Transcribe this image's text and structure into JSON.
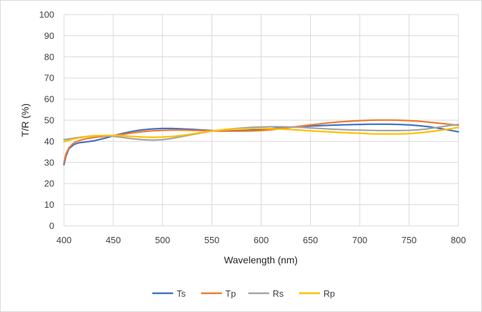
{
  "chart_data": {
    "type": "line",
    "title": "",
    "xlabel": "Wavelength (nm)",
    "ylabel": "T/R (%)",
    "xlim": [
      400,
      800
    ],
    "ylim": [
      0,
      100
    ],
    "xticks": [
      400,
      450,
      500,
      550,
      600,
      650,
      700,
      750,
      800
    ],
    "yticks": [
      0,
      10,
      20,
      30,
      40,
      50,
      60,
      70,
      80,
      90,
      100
    ],
    "grid": true,
    "legend_position": "bottom",
    "series": [
      {
        "name": "Ts",
        "color": "#4472C4",
        "x": [
          400,
          402,
          405,
          410,
          415,
          420,
          430,
          440,
          450,
          460,
          470,
          480,
          490,
          500,
          510,
          520,
          530,
          540,
          550,
          560,
          570,
          580,
          590,
          600,
          610,
          620,
          630,
          640,
          650,
          660,
          670,
          680,
          690,
          700,
          710,
          720,
          730,
          740,
          750,
          760,
          770,
          780,
          790,
          800
        ],
        "y": [
          29,
          33,
          36.5,
          38.5,
          39.3,
          39.6,
          40.2,
          41.3,
          42.6,
          43.8,
          44.8,
          45.5,
          45.9,
          46.1,
          46.1,
          45.9,
          45.7,
          45.4,
          45.1,
          45.0,
          45.0,
          45.1,
          45.3,
          45.6,
          46.0,
          46.4,
          46.7,
          47.0,
          47.2,
          47.4,
          47.6,
          47.8,
          47.9,
          48.0,
          48.1,
          48.1,
          48.1,
          48.0,
          47.8,
          47.4,
          46.9,
          46.2,
          45.4,
          44.5
        ]
      },
      {
        "name": "Tp",
        "color": "#ED7D31",
        "x": [
          400,
          402,
          405,
          410,
          415,
          420,
          430,
          440,
          450,
          460,
          470,
          480,
          490,
          500,
          510,
          520,
          530,
          540,
          550,
          560,
          570,
          580,
          590,
          600,
          610,
          620,
          630,
          640,
          650,
          660,
          670,
          680,
          690,
          700,
          710,
          720,
          730,
          740,
          750,
          760,
          770,
          780,
          790,
          800
        ],
        "y": [
          30,
          34,
          37,
          39.3,
          40.3,
          41.0,
          41.8,
          42.3,
          42.7,
          43.3,
          44.0,
          44.6,
          45.0,
          45.2,
          45.3,
          45.3,
          45.2,
          45.1,
          44.9,
          44.8,
          44.8,
          44.8,
          44.9,
          45.1,
          45.5,
          46.0,
          46.6,
          47.2,
          47.8,
          48.3,
          48.8,
          49.2,
          49.5,
          49.8,
          50.0,
          50.1,
          50.1,
          50.0,
          49.8,
          49.5,
          49.1,
          48.6,
          48.1,
          47.6
        ]
      },
      {
        "name": "Rs",
        "color": "#A5A5A5",
        "x": [
          400,
          410,
          420,
          430,
          440,
          450,
          460,
          470,
          480,
          490,
          500,
          510,
          520,
          530,
          540,
          550,
          560,
          570,
          580,
          590,
          600,
          610,
          620,
          630,
          640,
          650,
          660,
          670,
          680,
          690,
          700,
          710,
          720,
          730,
          740,
          750,
          760,
          770,
          780,
          790,
          800
        ],
        "y": [
          40.8,
          41.5,
          42.1,
          42.6,
          42.7,
          42.4,
          41.8,
          41.2,
          40.8,
          40.6,
          40.8,
          41.4,
          42.3,
          43.2,
          44.0,
          44.8,
          45.4,
          45.9,
          46.3,
          46.6,
          46.8,
          46.9,
          46.9,
          46.8,
          46.6,
          46.3,
          46.1,
          45.8,
          45.6,
          45.4,
          45.3,
          45.2,
          45.1,
          45.1,
          45.1,
          45.2,
          45.5,
          46.0,
          46.7,
          47.4,
          48.0
        ]
      },
      {
        "name": "Rp",
        "color": "#FFC000",
        "x": [
          400,
          410,
          420,
          430,
          440,
          450,
          460,
          470,
          480,
          490,
          500,
          510,
          520,
          530,
          540,
          550,
          560,
          570,
          580,
          590,
          600,
          610,
          620,
          630,
          640,
          650,
          660,
          670,
          680,
          690,
          700,
          710,
          720,
          730,
          740,
          750,
          760,
          770,
          780,
          790,
          800
        ],
        "y": [
          39.8,
          41.2,
          42.0,
          42.5,
          42.8,
          42.8,
          42.6,
          42.3,
          42.0,
          41.9,
          42.0,
          42.3,
          42.8,
          43.5,
          44.2,
          44.9,
          45.4,
          45.8,
          46.0,
          46.1,
          46.1,
          46.0,
          45.8,
          45.6,
          45.3,
          45.0,
          44.7,
          44.5,
          44.2,
          44.0,
          43.8,
          43.6,
          43.5,
          43.5,
          43.5,
          43.7,
          44.0,
          44.5,
          45.1,
          45.8,
          46.6
        ]
      }
    ]
  }
}
